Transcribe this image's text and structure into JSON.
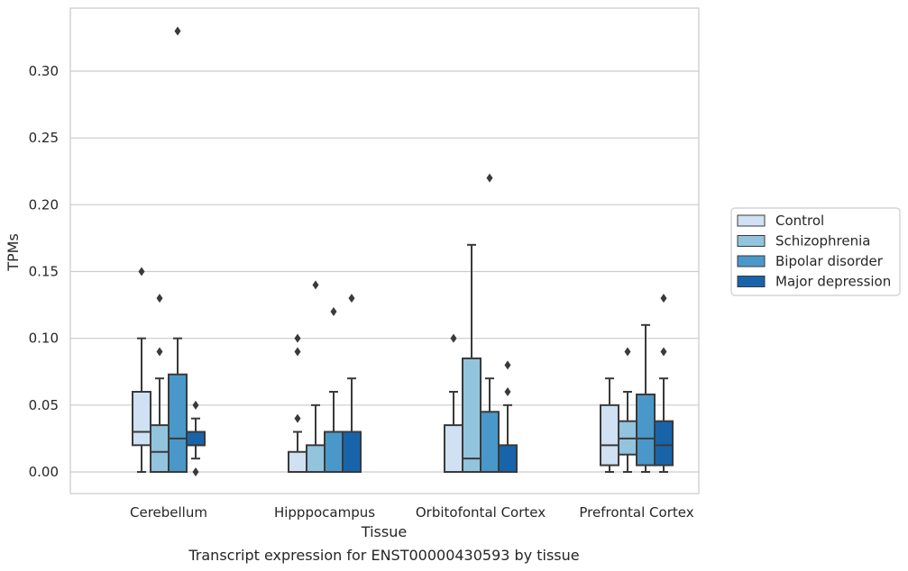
{
  "chart_data": {
    "type": "boxplot",
    "xlabel": "Tissue",
    "ylabel": "TPMs",
    "caption": "Transcript expression for ENST00000430593 by tissue",
    "ylim": [
      -0.016,
      0.347
    ],
    "yticks": [
      0.0,
      0.05,
      0.1,
      0.15,
      0.2,
      0.25,
      0.3
    ],
    "ytick_labels": [
      "0.00",
      "0.05",
      "0.10",
      "0.15",
      "0.20",
      "0.25",
      "0.30"
    ],
    "grid": "horizontal",
    "legend_position": "right",
    "categories": [
      "Cerebellum",
      "Hipppocampus",
      "Orbitofontal Cortex",
      "Prefrontal Cortex"
    ],
    "series": [
      {
        "name": "Control",
        "color": "#cfe1f2",
        "boxes": [
          {
            "whislo": 0.0,
            "q1": 0.02,
            "med": 0.03,
            "q3": 0.06,
            "whishi": 0.1,
            "fliers": [
              0.15
            ]
          },
          {
            "whislo": 0.0,
            "q1": 0.0,
            "med": 0.0,
            "q3": 0.015,
            "whishi": 0.03,
            "fliers": [
              0.04,
              0.09,
              0.1
            ]
          },
          {
            "whislo": 0.0,
            "q1": 0.0,
            "med": 0.0,
            "q3": 0.035,
            "whishi": 0.06,
            "fliers": [
              0.1
            ]
          },
          {
            "whislo": 0.0,
            "q1": 0.005,
            "med": 0.02,
            "q3": 0.05,
            "whishi": 0.07,
            "fliers": []
          }
        ]
      },
      {
        "name": "Schizophrenia",
        "color": "#93c4de",
        "boxes": [
          {
            "whislo": 0.0,
            "q1": 0.0,
            "med": 0.015,
            "q3": 0.035,
            "whishi": 0.07,
            "fliers": [
              0.09,
              0.13
            ]
          },
          {
            "whislo": 0.0,
            "q1": 0.0,
            "med": 0.0,
            "q3": 0.02,
            "whishi": 0.05,
            "fliers": [
              0.14
            ]
          },
          {
            "whislo": 0.0,
            "q1": 0.0,
            "med": 0.01,
            "q3": 0.085,
            "whishi": 0.17,
            "fliers": []
          },
          {
            "whislo": 0.0,
            "q1": 0.013,
            "med": 0.025,
            "q3": 0.038,
            "whishi": 0.06,
            "fliers": [
              0.09
            ]
          }
        ]
      },
      {
        "name": "Bipolar disorder",
        "color": "#4a98c9",
        "boxes": [
          {
            "whislo": 0.0,
            "q1": 0.0,
            "med": 0.025,
            "q3": 0.073,
            "whishi": 0.1,
            "fliers": [
              0.33
            ]
          },
          {
            "whislo": 0.0,
            "q1": 0.0,
            "med": 0.0,
            "q3": 0.03,
            "whishi": 0.06,
            "fliers": [
              0.12
            ]
          },
          {
            "whislo": 0.0,
            "q1": 0.0,
            "med": 0.0,
            "q3": 0.045,
            "whishi": 0.07,
            "fliers": [
              0.22
            ]
          },
          {
            "whislo": 0.0,
            "q1": 0.005,
            "med": 0.025,
            "q3": 0.058,
            "whishi": 0.11,
            "fliers": []
          }
        ]
      },
      {
        "name": "Major depression",
        "color": "#1764ab",
        "boxes": [
          {
            "whislo": 0.01,
            "q1": 0.02,
            "med": 0.02,
            "q3": 0.03,
            "whishi": 0.04,
            "fliers": [
              0.0,
              0.05
            ]
          },
          {
            "whislo": 0.0,
            "q1": 0.0,
            "med": 0.0,
            "q3": 0.03,
            "whishi": 0.07,
            "fliers": [
              0.13
            ]
          },
          {
            "whislo": 0.0,
            "q1": 0.0,
            "med": 0.0,
            "q3": 0.02,
            "whishi": 0.05,
            "fliers": [
              0.06,
              0.08
            ]
          },
          {
            "whislo": 0.0,
            "q1": 0.005,
            "med": 0.02,
            "q3": 0.038,
            "whishi": 0.07,
            "fliers": [
              0.09,
              0.13
            ]
          }
        ]
      }
    ]
  }
}
